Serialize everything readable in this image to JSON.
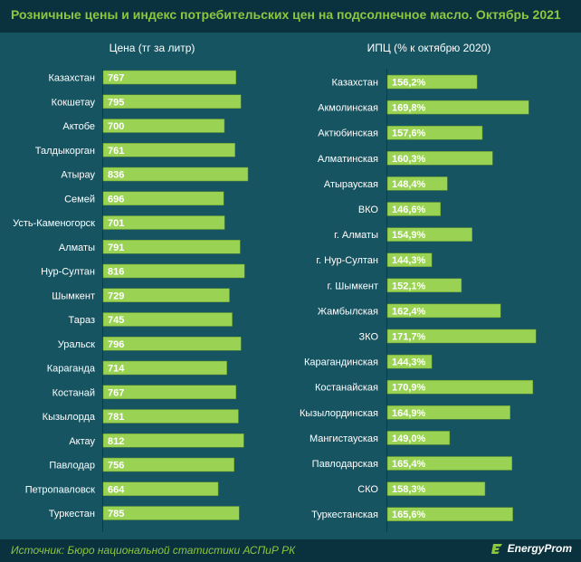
{
  "title": "Розничные цены и индекс потребительских цен на подсолнечное масло. Октябрь 2021",
  "source": "Источник: Бюро национальной статистики АСПиР РК",
  "logo": "EnergyProm",
  "colors": {
    "bar": "#9ad353",
    "bar_edge": "#5f8f2a",
    "value_text": "#ffffff",
    "label_text": "#ffffff",
    "accent": "#8dc63f"
  },
  "chart_data": [
    {
      "type": "bar",
      "orientation": "horizontal",
      "title": "Цена (тг за литр)",
      "categories": [
        "Казахстан",
        "Кокшетау",
        "Актобе",
        "Талдыкорган",
        "Атырау",
        "Семей",
        "Усть-Каменогорск",
        "Алматы",
        "Нур-Султан",
        "Шымкент",
        "Тараз",
        "Уральск",
        "Караганда",
        "Костанай",
        "Кызылорда",
        "Актау",
        "Павлодар",
        "Петропавловск",
        "Туркестан"
      ],
      "values": [
        767,
        795,
        700,
        761,
        836,
        696,
        701,
        791,
        816,
        729,
        745,
        796,
        714,
        767,
        781,
        812,
        756,
        664,
        785
      ],
      "value_labels": [
        "767",
        "795",
        "700",
        "761",
        "836",
        "696",
        "701",
        "791",
        "816",
        "729",
        "745",
        "796",
        "714",
        "767",
        "781",
        "812",
        "756",
        "664",
        "785"
      ],
      "xlim": [
        0,
        850
      ],
      "grid": false,
      "legend": "none"
    },
    {
      "type": "bar",
      "orientation": "horizontal",
      "title": "ИПЦ (% к октябрю 2020)",
      "categories": [
        "Казахстан",
        "Акмолинская",
        "Актюбинская",
        "Алматинская",
        "Атырауская",
        "ВКО",
        "г. Алматы",
        "г. Нур-Султан",
        "г. Шымкент",
        "Жамбылская",
        "ЗКО",
        "Карагандинская",
        "Костанайская",
        "Кызылординская",
        "Мангистауская",
        "Павлодарская",
        "СКО",
        "Туркестанская"
      ],
      "values": [
        156.2,
        169.8,
        157.6,
        160.3,
        148.4,
        146.6,
        154.9,
        144.3,
        152.1,
        162.4,
        171.7,
        144.3,
        170.9,
        164.9,
        149.0,
        165.4,
        158.3,
        165.6
      ],
      "value_labels": [
        "156,2%",
        "169,8%",
        "157,6%",
        "160,3%",
        "148,4%",
        "146,6%",
        "154,9%",
        "144,3%",
        "152,1%",
        "162,4%",
        "171,7%",
        "144,3%",
        "170,9%",
        "164,9%",
        "149,0%",
        "165,4%",
        "158,3%",
        "165,6%"
      ],
      "xlim": [
        130,
        175
      ],
      "grid": false,
      "legend": "none"
    }
  ]
}
